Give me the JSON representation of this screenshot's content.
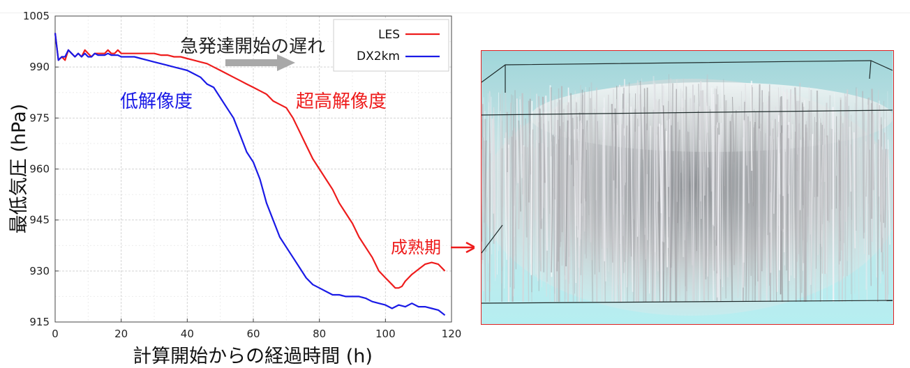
{
  "colors": {
    "les": "#ee1c1c",
    "dx2km": "#1a1ae6",
    "annotation_gray": "#a8a8a8",
    "panel_border": "#e02020",
    "panel_sky": "#b6eef1"
  },
  "chart_data": {
    "type": "line",
    "xlabel": "計算開始からの経過時間 (h)",
    "ylabel": "最低気圧 (hPa)",
    "xlim": [
      0,
      120
    ],
    "ylim": [
      915,
      1005
    ],
    "xticks": [
      "0",
      "20",
      "40",
      "60",
      "80",
      "100",
      "120"
    ],
    "yticks": [
      "915",
      "930",
      "945",
      "960",
      "975",
      "990",
      "1005"
    ],
    "grid": true,
    "legend_position": "top-right",
    "series": [
      {
        "name": "LES",
        "color": "#ee1c1c",
        "x": [
          0,
          1,
          2,
          3,
          4,
          5,
          6,
          7,
          8,
          9,
          10,
          11,
          12,
          13,
          14,
          15,
          16,
          17,
          18,
          19,
          20,
          22,
          24,
          26,
          28,
          30,
          32,
          34,
          36,
          38,
          40,
          42,
          44,
          46,
          48,
          50,
          52,
          54,
          56,
          58,
          60,
          62,
          64,
          66,
          68,
          70,
          72,
          74,
          76,
          78,
          80,
          82,
          84,
          86,
          88,
          90,
          92,
          94,
          96,
          98,
          100,
          102,
          103,
          104,
          105,
          106,
          108,
          110,
          112,
          114,
          116,
          118
        ],
        "y": [
          1000,
          992,
          993,
          992,
          995,
          994,
          993,
          994,
          993,
          995,
          994,
          993,
          994,
          994,
          994,
          994,
          995,
          994,
          994,
          995,
          994,
          994,
          994,
          994,
          994,
          994,
          993.5,
          993.5,
          993,
          993,
          992.5,
          992,
          991.5,
          991,
          990,
          989,
          988,
          987,
          986,
          985,
          984,
          983,
          982,
          980,
          979,
          978,
          975,
          971,
          967,
          963,
          960,
          957,
          954,
          950,
          947,
          944,
          940,
          937,
          934,
          930,
          928,
          926,
          925,
          925,
          925.5,
          927,
          929,
          930.5,
          932,
          932.5,
          932,
          930
        ]
      },
      {
        "name": "DX2km",
        "color": "#1a1ae6",
        "x": [
          0,
          1,
          2,
          3,
          4,
          5,
          6,
          7,
          8,
          9,
          10,
          11,
          12,
          13,
          14,
          15,
          16,
          17,
          18,
          19,
          20,
          22,
          24,
          26,
          28,
          30,
          32,
          34,
          36,
          38,
          40,
          42,
          44,
          46,
          48,
          50,
          52,
          54,
          56,
          58,
          60,
          62,
          64,
          66,
          68,
          70,
          72,
          74,
          76,
          78,
          80,
          82,
          84,
          86,
          88,
          90,
          92,
          94,
          96,
          98,
          100,
          102,
          104,
          106,
          108,
          110,
          112,
          114,
          116,
          118
        ],
        "y": [
          1000,
          992,
          993,
          993,
          995,
          994,
          993,
          994,
          993,
          994,
          993,
          993,
          994,
          993.5,
          993.5,
          993.5,
          994,
          993.5,
          993.5,
          993.5,
          993,
          993,
          993,
          992.5,
          992,
          991.5,
          991,
          990.5,
          990,
          989.5,
          989,
          988,
          987,
          985,
          984,
          981,
          978,
          975,
          970,
          965,
          962,
          957,
          950,
          945,
          940,
          937,
          934,
          931,
          928,
          926,
          925,
          924,
          923,
          923,
          922.5,
          922.5,
          922.5,
          922,
          921,
          920.5,
          920,
          919,
          920,
          919.5,
          920.5,
          919.5,
          919.5,
          919,
          918.5,
          917
        ]
      }
    ]
  },
  "annotations": {
    "delay": "急発達開始の遅れ",
    "low_res": "低解像度",
    "high_res": "超高解像度",
    "mature": "成熟期"
  }
}
